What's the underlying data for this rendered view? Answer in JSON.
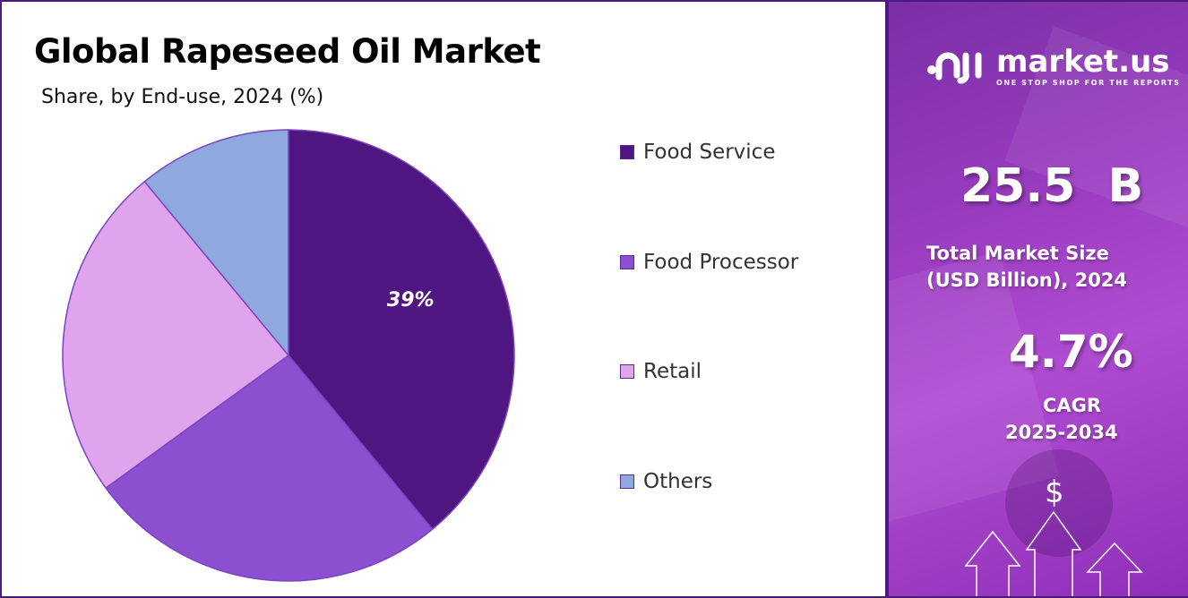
{
  "chart_data": {
    "type": "pie",
    "title": "Global Rapeseed Oil Market",
    "subtitle": "Share, by End-use, 2024 (%)",
    "categories": [
      "Food Service",
      "Food Processor",
      "Retail",
      "Others"
    ],
    "values": [
      39,
      26,
      24,
      11
    ],
    "data_labels": [
      "39%",
      "",
      "",
      ""
    ],
    "colors": [
      "#4f1580",
      "#8b4fd0",
      "#e0a4ec",
      "#8fa8de"
    ],
    "legend_placement": "right"
  },
  "panel": {
    "logo_name": "market.us",
    "logo_tagline": "ONE STOP SHOP FOR THE REPORTS",
    "market_size": "25.5  B",
    "market_size_label_1": "Total Market Size",
    "market_size_label_2": "(USD Billion), 2024",
    "cagr": "4.7%",
    "cagr_label_1": "CAGR",
    "cagr_label_2": "2025-2034",
    "dollar_symbol": "$",
    "icons": [
      "dollar-icon",
      "up-arrow-icon"
    ]
  }
}
